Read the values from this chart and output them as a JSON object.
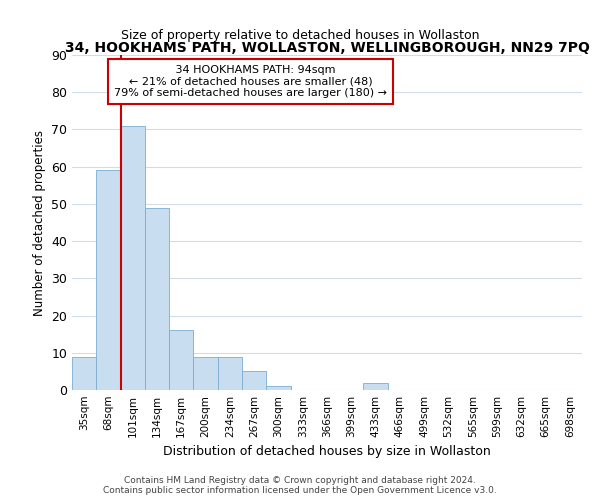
{
  "title": "34, HOOKHAMS PATH, WOLLASTON, WELLINGBOROUGH, NN29 7PQ",
  "subtitle": "Size of property relative to detached houses in Wollaston",
  "xlabel": "Distribution of detached houses by size in Wollaston",
  "ylabel": "Number of detached properties",
  "bar_color": "#c8ddf0",
  "bar_edge_color": "#7aaed0",
  "categories": [
    "35sqm",
    "68sqm",
    "101sqm",
    "134sqm",
    "167sqm",
    "200sqm",
    "234sqm",
    "267sqm",
    "300sqm",
    "333sqm",
    "366sqm",
    "399sqm",
    "433sqm",
    "466sqm",
    "499sqm",
    "532sqm",
    "565sqm",
    "599sqm",
    "632sqm",
    "665sqm",
    "698sqm"
  ],
  "values": [
    9,
    59,
    71,
    49,
    16,
    9,
    9,
    5,
    1,
    0,
    0,
    0,
    2,
    0,
    0,
    0,
    0,
    0,
    0,
    0,
    0
  ],
  "property_label": "34 HOOKHAMS PATH: 94sqm",
  "pct_smaller": 21,
  "n_smaller": 48,
  "pct_larger": 79,
  "n_larger": 180,
  "vline_x": 2.0,
  "ylim": [
    0,
    90
  ],
  "yticks": [
    0,
    10,
    20,
    30,
    40,
    50,
    60,
    70,
    80,
    90
  ],
  "footnote": "Contains HM Land Registry data © Crown copyright and database right 2024.\nContains public sector information licensed under the Open Government Licence v3.0.",
  "bg_color": "#ffffff",
  "plot_bg_color": "#ffffff",
  "grid_color": "#d0dde8",
  "annotation_box_color": "#ffffff",
  "annotation_box_edge": "#cc0000",
  "vline_color": "#cc0000"
}
